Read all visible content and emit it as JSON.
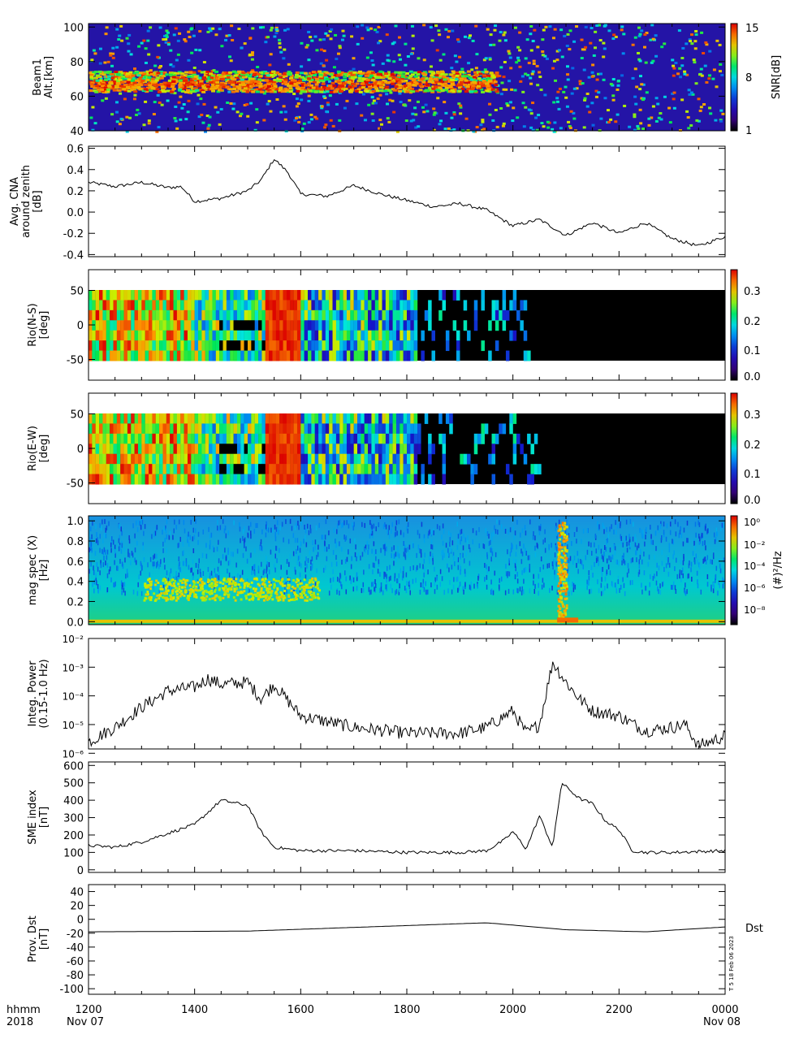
{
  "figure": {
    "time_label_row1": "hhmm",
    "time_label_row2": "2018",
    "x_ticks": [
      "1200",
      "1400",
      "1600",
      "1800",
      "2000",
      "2200",
      "0000"
    ],
    "x_start_date": "Nov 07",
    "x_end_date": "Nov 08",
    "stamp": "T 5 18 Feb 06 2023"
  },
  "chart_data": [
    {
      "type": "heatmap",
      "ylabel": [
        "Beam1",
        "Alt.[km]"
      ],
      "ylim": [
        40,
        102
      ],
      "yticks": [
        "40",
        "60",
        "80",
        "100"
      ],
      "colorbar": {
        "label": "SNR[dB]",
        "ticks": [
          "1",
          "8",
          "15"
        ],
        "range": [
          1,
          15
        ]
      },
      "features": [
        {
          "time": "12:00-19:30",
          "altitude_km": 67,
          "snr_db": 15
        },
        {
          "time": "14:00-19:00",
          "altitude_km": 72,
          "snr_db": 11
        }
      ]
    },
    {
      "type": "line",
      "ylabel": [
        "Avg. CNA",
        "around zenith",
        "[dB]"
      ],
      "ylim": [
        -0.42,
        0.62
      ],
      "yticks": [
        "-0.4",
        "-0.2",
        "0.0",
        "0.2",
        "0.4",
        "0.6"
      ],
      "x": [
        "12:00",
        "12:30",
        "13:00",
        "13:30",
        "13:45",
        "14:00",
        "14:30",
        "15:00",
        "15:15",
        "15:30",
        "15:45",
        "16:00",
        "16:30",
        "17:00",
        "17:30",
        "18:00",
        "18:30",
        "19:00",
        "19:30",
        "20:00",
        "20:30",
        "21:00",
        "21:30",
        "22:00",
        "22:30",
        "23:00",
        "23:30",
        "24:00"
      ],
      "y": [
        0.28,
        0.24,
        0.28,
        0.23,
        0.24,
        0.1,
        0.13,
        0.2,
        0.3,
        0.5,
        0.38,
        0.17,
        0.15,
        0.25,
        0.17,
        0.11,
        0.05,
        0.08,
        0.02,
        -0.13,
        -0.07,
        -0.22,
        -0.1,
        -0.2,
        -0.1,
        -0.25,
        -0.32,
        -0.23
      ]
    },
    {
      "type": "heatmap",
      "ylabel": [
        "Rio(N-S)",
        "[deg]"
      ],
      "ylim": [
        -80,
        80
      ],
      "yticks": [
        "-50",
        "0",
        "50"
      ],
      "coverage_deg": [
        -56,
        56
      ],
      "colorbar": {
        "ticks": [
          "0.0",
          "0.1",
          "0.2",
          "0.3"
        ],
        "range": [
          0,
          0.37
        ]
      },
      "features": [
        {
          "time": "15:30-16:00",
          "value": 0.35
        },
        {
          "time": "12:00-14:00",
          "value": 0.25
        }
      ]
    },
    {
      "type": "heatmap",
      "ylabel": [
        "Rio(E-W)",
        "[deg]"
      ],
      "ylim": [
        -80,
        80
      ],
      "yticks": [
        "-50",
        "0",
        "50"
      ],
      "coverage_deg": [
        -56,
        56
      ],
      "colorbar": {
        "ticks": [
          "0.0",
          "0.1",
          "0.2",
          "0.3"
        ],
        "range": [
          0,
          0.37
        ]
      },
      "features": [
        {
          "time": "15:30-16:00",
          "value": 0.35
        },
        {
          "time": "12:00-14:00",
          "value": 0.25
        }
      ]
    },
    {
      "type": "heatmap",
      "ylabel": [
        "mag spec (X)",
        "[Hz]"
      ],
      "ylim": [
        -0.03,
        1.05
      ],
      "yticks": [
        "0.0",
        "0.2",
        "0.4",
        "0.6",
        "0.8",
        "1.0"
      ],
      "colorbar": {
        "label": "(#)²/Hz",
        "ticks": [
          "10⁰",
          "10⁻²",
          "10⁻⁴",
          "10⁻⁶",
          "10⁻⁸"
        ],
        "range_log10": [
          -9,
          1
        ]
      },
      "features": [
        {
          "time": "13:15-14:30",
          "freq_hz": 0.38
        },
        {
          "time": "20:45-21:00",
          "freq_hz": "0.0-1.0"
        }
      ]
    },
    {
      "type": "line",
      "ylabel": [
        "Integ. Power",
        "(0.15-1.0 Hz)"
      ],
      "yscale": "log",
      "ylim_log10": [
        -5.85,
        -2
      ],
      "yticks": [
        "10⁻⁶",
        "10⁻⁵",
        "10⁻⁴",
        "10⁻³",
        "10⁻²"
      ],
      "x": [
        "12:00",
        "12:30",
        "13:00",
        "13:30",
        "14:00",
        "14:15",
        "14:30",
        "15:00",
        "15:15",
        "15:30",
        "16:00",
        "17:00",
        "18:00",
        "19:00",
        "19:30",
        "20:00",
        "20:15",
        "20:30",
        "20:45",
        "21:00",
        "21:15",
        "21:30",
        "22:00",
        "22:30",
        "23:00",
        "23:15",
        "23:30",
        "24:00"
      ],
      "y": [
        2.5e-06,
        8e-06,
        4e-05,
        0.00015,
        0.0002,
        0.0004,
        0.00025,
        0.0003,
        8e-05,
        0.00025,
        2e-05,
        8e-06,
        5e-06,
        5e-06,
        8e-06,
        3e-05,
        5e-06,
        1e-05,
        0.0015,
        0.0003,
        8e-05,
        3e-05,
        2e-05,
        6e-06,
        8e-06,
        1e-05,
        1.8e-06,
        4e-06
      ]
    },
    {
      "type": "line",
      "ylabel": [
        "SME index",
        "[nT]"
      ],
      "ylim": [
        -15,
        620
      ],
      "yticks": [
        "0",
        "100",
        "200",
        "300",
        "400",
        "500",
        "600"
      ],
      "x": [
        "12:00",
        "12:30",
        "13:00",
        "13:30",
        "14:00",
        "14:30",
        "15:00",
        "15:15",
        "15:30",
        "16:00",
        "17:00",
        "18:00",
        "19:00",
        "19:30",
        "19:50",
        "20:00",
        "20:15",
        "20:30",
        "20:45",
        "20:55",
        "21:15",
        "21:30",
        "21:45",
        "22:00",
        "22:15",
        "22:30",
        "23:00",
        "24:00"
      ],
      "y": [
        140,
        130,
        160,
        210,
        260,
        400,
        370,
        220,
        130,
        110,
        110,
        100,
        100,
        110,
        170,
        220,
        120,
        310,
        130,
        500,
        410,
        380,
        280,
        230,
        110,
        100,
        100,
        110
      ]
    },
    {
      "type": "line",
      "ylabel": [
        "Prov. Dst",
        "[nT]"
      ],
      "ylim": [
        -108,
        50
      ],
      "yticks": [
        "-100",
        "-80",
        "-60",
        "-40",
        "-20",
        "0",
        "20",
        "40"
      ],
      "x": [
        "12:00",
        "15:00",
        "18:00",
        "19:30",
        "21:00",
        "22:30",
        "24:00"
      ],
      "y": [
        -18,
        -17,
        -9,
        -5,
        -15,
        -18,
        -11
      ],
      "legend": "Dst"
    }
  ]
}
